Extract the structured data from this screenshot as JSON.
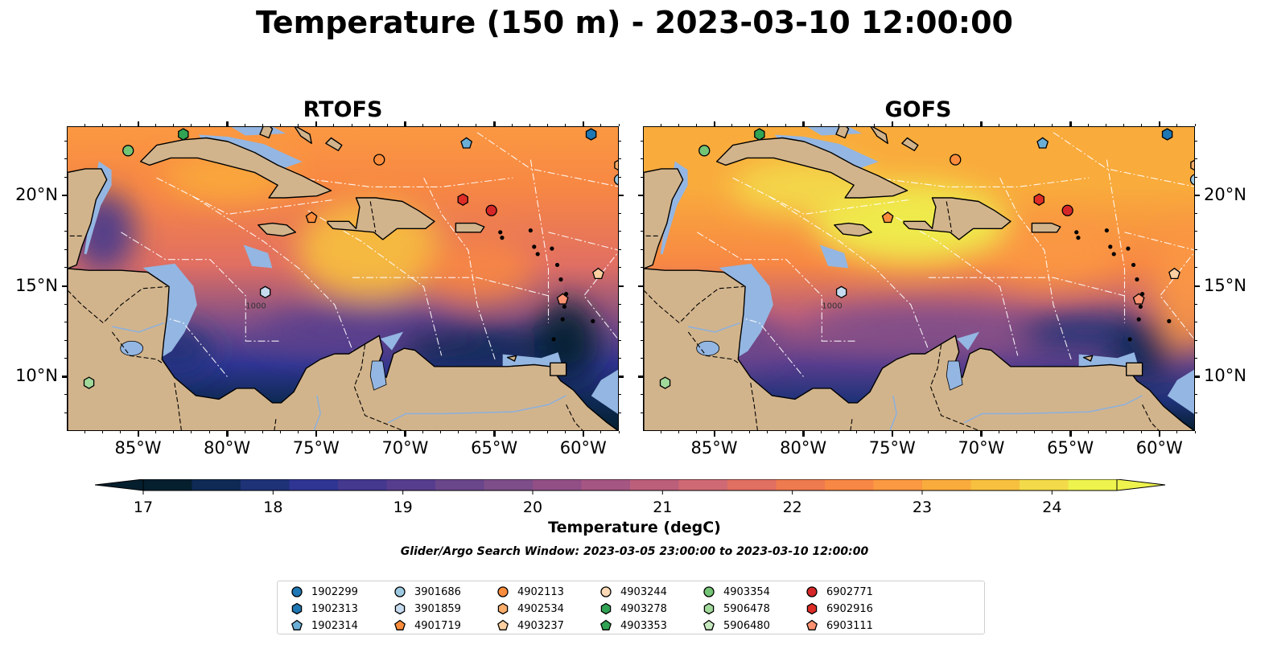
{
  "title": "Temperature (150 m) - 2023-03-10 12:00:00",
  "panels": [
    {
      "title": "RTOFS"
    },
    {
      "title": "GOFS"
    }
  ],
  "axes": {
    "x_ticks": [
      "85°W",
      "80°W",
      "75°W",
      "70°W",
      "65°W",
      "60°W"
    ],
    "y_ticks": [
      "20°N",
      "15°N",
      "10°N"
    ]
  },
  "colorbar": {
    "label": "Temperature (degC)",
    "ticks": [
      "17",
      "18",
      "19",
      "20",
      "21",
      "22",
      "23",
      "24"
    ],
    "range": [
      17,
      24.5
    ],
    "step": 0.5,
    "extend": "both",
    "colors": [
      "#051f2e",
      "#0e2a55",
      "#1e3278",
      "#2f3592",
      "#44388f",
      "#573d8d",
      "#6a468b",
      "#7d4e89",
      "#914f86",
      "#a65682",
      "#bb5f7b",
      "#cf6a74",
      "#e16f62",
      "#ee7a4f",
      "#f78744",
      "#fb9842",
      "#f9ab3c",
      "#f7c03e",
      "#f3da4a",
      "#eef34e"
    ]
  },
  "search_window": "Glider/Argo Search Window: 2023-03-05 23:00:00 to 2023-03-10 12:00:00",
  "legend": [
    {
      "id": "1902299",
      "marker": "circle",
      "color": "#1f77b4"
    },
    {
      "id": "1902313",
      "marker": "hexagon",
      "color": "#1f77b4"
    },
    {
      "id": "1902314",
      "marker": "pentagon",
      "color": "#6baed6"
    },
    {
      "id": "3901686",
      "marker": "circle",
      "color": "#9ecae1"
    },
    {
      "id": "3901859",
      "marker": "hexagon",
      "color": "#c6dbef"
    },
    {
      "id": "4901719",
      "marker": "pentagon",
      "color": "#fd8d3c"
    },
    {
      "id": "4902113",
      "marker": "circle",
      "color": "#fd8d3c"
    },
    {
      "id": "4902534",
      "marker": "hexagon",
      "color": "#fdae6b"
    },
    {
      "id": "4903237",
      "marker": "pentagon",
      "color": "#fdd0a2"
    },
    {
      "id": "4903244",
      "marker": "circle",
      "color": "#fdd9b5"
    },
    {
      "id": "4903278",
      "marker": "hexagon",
      "color": "#31a354"
    },
    {
      "id": "4903353",
      "marker": "pentagon",
      "color": "#31a354"
    },
    {
      "id": "4903354",
      "marker": "circle",
      "color": "#74c476"
    },
    {
      "id": "5906478",
      "marker": "hexagon",
      "color": "#a1d99b"
    },
    {
      "id": "5906480",
      "marker": "pentagon",
      "color": "#c7e9c0"
    },
    {
      "id": "6902771",
      "marker": "circle",
      "color": "#d62728"
    },
    {
      "id": "6902916",
      "marker": "hexagon",
      "color": "#de2d26"
    },
    {
      "id": "6903111",
      "marker": "pentagon",
      "color": "#fc9272"
    }
  ],
  "floats": [
    {
      "id": "4903354",
      "lon": -85.6,
      "lat": 22.5
    },
    {
      "id": "4903278",
      "lon": -82.5,
      "lat": 23.4
    },
    {
      "id": "1902314",
      "lon": -66.6,
      "lat": 22.9
    },
    {
      "id": "1902313",
      "lon": -59.6,
      "lat": 23.4
    },
    {
      "id": "4902113",
      "lon": -71.5,
      "lat": 22.0
    },
    {
      "id": "3901686",
      "lon": -58.0,
      "lat": 20.9
    },
    {
      "id": "4902534",
      "lon": -58.0,
      "lat": 21.7
    },
    {
      "id": "6902916",
      "lon": -66.8,
      "lat": 19.8
    },
    {
      "id": "6902771",
      "lon": -65.2,
      "lat": 19.2
    },
    {
      "id": "4901719",
      "lon": -75.3,
      "lat": 18.8
    },
    {
      "id": "3901859",
      "lon": -77.9,
      "lat": 14.7
    },
    {
      "id": "6903111",
      "lon": -61.2,
      "lat": 14.3
    },
    {
      "id": "4903237",
      "lon": -59.2,
      "lat": 15.7
    },
    {
      "id": "5906478",
      "lon": -87.8,
      "lat": 9.7
    }
  ],
  "map_extent": {
    "lon": [
      -89,
      -58
    ],
    "lat": [
      7,
      23.8
    ]
  },
  "land_color": "#d2b48c",
  "shallow_color": "#94b6e2"
}
